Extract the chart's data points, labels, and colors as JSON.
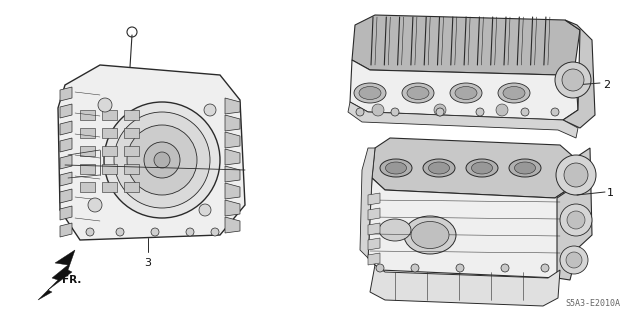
{
  "bg_color": "#ffffff",
  "line_color": "#2a2a2a",
  "gray_fill": "#d8d8d8",
  "light_fill": "#efefef",
  "mid_fill": "#c8c8c8",
  "dark_fill": "#b0b0b0",
  "diagram_code": "S5A3-E2010A",
  "fr_label": "FR.",
  "figsize": [
    6.4,
    3.19
  ],
  "dpi": 100
}
